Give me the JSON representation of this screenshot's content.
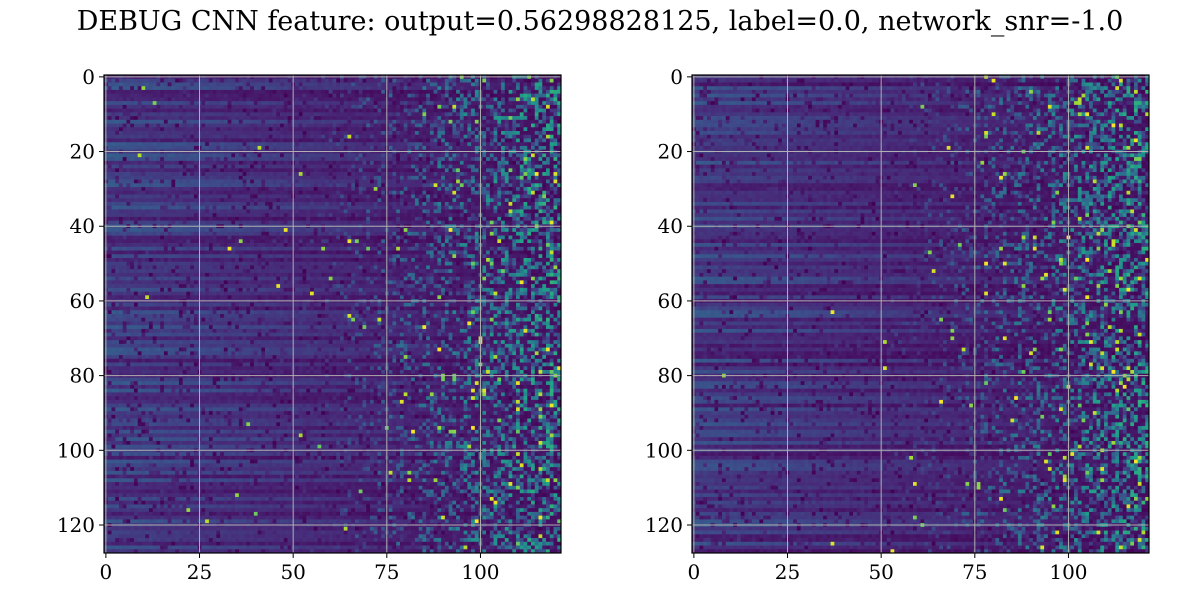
{
  "title": "DEBUG CNN feature: output=0.56298828125, label=0.0, network_snr=-1.0",
  "colormap": [
    "#440154",
    "#482878",
    "#3e4989",
    "#31688e",
    "#26828e",
    "#1f9e89",
    "#35b779",
    "#6ece58",
    "#b5de2b",
    "#fde725"
  ],
  "chart_data": [
    {
      "type": "heatmap",
      "title": "",
      "xlabel": "",
      "ylabel": "",
      "rows": 128,
      "cols": 122,
      "xlim": [
        -0.5,
        121.5
      ],
      "ylim": [
        127.5,
        -0.5
      ],
      "xticks": [
        0,
        25,
        50,
        75,
        100
      ],
      "xtick_labels": [
        "0",
        "25",
        "50",
        "75",
        "100"
      ],
      "yticks": [
        0,
        20,
        40,
        60,
        80,
        100,
        120
      ],
      "ytick_labels": [
        "0",
        "20",
        "40",
        "60",
        "80",
        "100",
        "120"
      ],
      "grid": true,
      "colormap": "viridis",
      "pattern": "smooth low values in columns 0-50, increasingly noisy speckle toward columns 75-121"
    },
    {
      "type": "heatmap",
      "title": "",
      "xlabel": "",
      "ylabel": "",
      "rows": 128,
      "cols": 122,
      "xlim": [
        -0.5,
        121.5
      ],
      "ylim": [
        127.5,
        -0.5
      ],
      "xticks": [
        0,
        25,
        50,
        75,
        100
      ],
      "xtick_labels": [
        "0",
        "25",
        "50",
        "75",
        "100"
      ],
      "yticks": [
        0,
        20,
        40,
        60,
        80,
        100,
        120
      ],
      "ytick_labels": [
        "0",
        "20",
        "40",
        "60",
        "80",
        "100",
        "120"
      ],
      "grid": true,
      "colormap": "viridis",
      "pattern": "smooth low values in columns 0-50, increasingly noisy speckle toward columns 75-121"
    }
  ]
}
